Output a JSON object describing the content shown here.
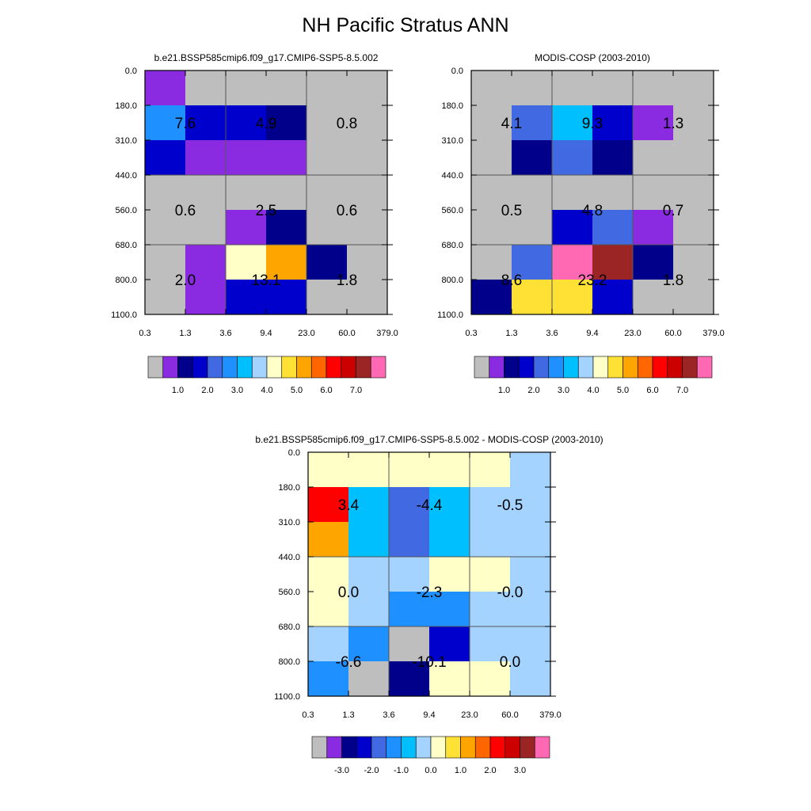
{
  "title": "NH Pacific Stratus ANN",
  "palette": {
    "missing": "#bebebe",
    "abs": [
      "#bebebe",
      "#8a2be2",
      "#00008b",
      "#0000cd",
      "#4169e1",
      "#1e90ff",
      "#00bfff",
      "#a4d3ff",
      "#ffffc8",
      "#ffe135",
      "#ffa500",
      "#ff6600",
      "#ff0000",
      "#cd0000",
      "#9b2424",
      "#ff69b4"
    ],
    "diff": [
      "#bebebe",
      "#8a2be2",
      "#00008b",
      "#0000cd",
      "#4169e1",
      "#1e90ff",
      "#00bfff",
      "#a4d3ff",
      "#ffffc8",
      "#ffe135",
      "#ffa500",
      "#ff6600",
      "#ff0000",
      "#cd0000",
      "#9b2424",
      "#ff69b4"
    ]
  },
  "chart_data": [
    {
      "type": "heatmap",
      "title": "b.e21.BSSP585cmip6.f09_g17.CMIP6-SSP5-8.5.002",
      "x_ticks": [
        "0.3",
        "1.3",
        "3.6",
        "9.4",
        "23.0",
        "60.0",
        "379.0"
      ],
      "y_ticks": [
        "0.0",
        "180.0",
        "310.0",
        "440.0",
        "560.0",
        "680.0",
        "800.0",
        "1100.0"
      ],
      "cell_colors": [
        [
          "#8a2be2",
          "#bebebe",
          "#bebebe",
          "#bebebe",
          "#bebebe",
          "#bebebe"
        ],
        [
          "#1e90ff",
          "#0000cd",
          "#0000cd",
          "#00008b",
          "#bebebe",
          "#bebebe"
        ],
        [
          "#0000cd",
          "#8a2be2",
          "#8a2be2",
          "#8a2be2",
          "#bebebe",
          "#bebebe"
        ],
        [
          "#bebebe",
          "#bebebe",
          "#bebebe",
          "#bebebe",
          "#bebebe",
          "#bebebe"
        ],
        [
          "#bebebe",
          "#bebebe",
          "#8a2be2",
          "#00008b",
          "#bebebe",
          "#bebebe"
        ],
        [
          "#bebebe",
          "#8a2be2",
          "#ffffc8",
          "#ffa500",
          "#00008b",
          "#bebebe"
        ],
        [
          "#bebebe",
          "#8a2be2",
          "#0000cd",
          "#0000cd",
          "#bebebe",
          "#bebebe"
        ]
      ],
      "block_values": [
        [
          "7.6",
          "4.9",
          "0.8"
        ],
        [
          "0.6",
          "2.5",
          "0.6"
        ],
        [
          "2.0",
          "13.1",
          "1.8"
        ]
      ],
      "colorbar_labels": [
        "1.0",
        "2.0",
        "3.0",
        "4.0",
        "5.0",
        "6.0",
        "7.0"
      ]
    },
    {
      "type": "heatmap",
      "title": "MODIS-COSP (2003-2010)",
      "x_ticks": [
        "0.3",
        "1.3",
        "3.6",
        "9.4",
        "23.0",
        "60.0",
        "379.0"
      ],
      "y_ticks": [
        "0.0",
        "180.0",
        "310.0",
        "440.0",
        "560.0",
        "680.0",
        "800.0",
        "1100.0"
      ],
      "cell_colors": [
        [
          "#bebebe",
          "#bebebe",
          "#bebebe",
          "#bebebe",
          "#bebebe",
          "#bebebe"
        ],
        [
          "#bebebe",
          "#4169e1",
          "#00bfff",
          "#0000cd",
          "#8a2be2",
          "#bebebe"
        ],
        [
          "#bebebe",
          "#00008b",
          "#4169e1",
          "#00008b",
          "#bebebe",
          "#bebebe"
        ],
        [
          "#bebebe",
          "#bebebe",
          "#bebebe",
          "#bebebe",
          "#bebebe",
          "#bebebe"
        ],
        [
          "#bebebe",
          "#bebebe",
          "#0000cd",
          "#4169e1",
          "#8a2be2",
          "#bebebe"
        ],
        [
          "#bebebe",
          "#4169e1",
          "#ff69b4",
          "#9b2424",
          "#00008b",
          "#bebebe"
        ],
        [
          "#00008b",
          "#ffe135",
          "#ffe135",
          "#0000cd",
          "#bebebe",
          "#bebebe"
        ]
      ],
      "block_values": [
        [
          "4.1",
          "9.3",
          "1.3"
        ],
        [
          "0.5",
          "4.8",
          "0.7"
        ],
        [
          "8.6",
          "23.2",
          "1.8"
        ]
      ],
      "colorbar_labels": [
        "1.0",
        "2.0",
        "3.0",
        "4.0",
        "5.0",
        "6.0",
        "7.0"
      ]
    },
    {
      "type": "heatmap",
      "title": "b.e21.BSSP585cmip6.f09_g17.CMIP6-SSP5-8.5.002 - MODIS-COSP (2003-2010)",
      "x_ticks": [
        "0.3",
        "1.3",
        "3.6",
        "9.4",
        "23.0",
        "60.0",
        "379.0"
      ],
      "y_ticks": [
        "0.0",
        "180.0",
        "310.0",
        "440.0",
        "560.0",
        "680.0",
        "800.0",
        "1100.0"
      ],
      "cell_colors": [
        [
          "#ffffc8",
          "#ffffc8",
          "#ffffc8",
          "#ffffc8",
          "#ffffc8",
          "#a4d3ff"
        ],
        [
          "#ff0000",
          "#00bfff",
          "#4169e1",
          "#00bfff",
          "#a4d3ff",
          "#a4d3ff"
        ],
        [
          "#ffa500",
          "#00bfff",
          "#4169e1",
          "#00bfff",
          "#a4d3ff",
          "#a4d3ff"
        ],
        [
          "#ffffc8",
          "#a4d3ff",
          "#a4d3ff",
          "#ffffc8",
          "#ffffc8",
          "#a4d3ff"
        ],
        [
          "#ffffc8",
          "#a4d3ff",
          "#1e90ff",
          "#1e90ff",
          "#a4d3ff",
          "#a4d3ff"
        ],
        [
          "#a4d3ff",
          "#1e90ff",
          "#bebebe",
          "#0000cd",
          "#a4d3ff",
          "#a4d3ff"
        ],
        [
          "#1e90ff",
          "#bebebe",
          "#00008b",
          "#ffffc8",
          "#ffffc8",
          "#a4d3ff"
        ]
      ],
      "block_values": [
        [
          "3.4",
          "-4.4",
          "-0.5"
        ],
        [
          "0.0",
          "-2.3",
          "-0.0"
        ],
        [
          "-6.6",
          "-10.1",
          "0.0"
        ]
      ],
      "colorbar_labels": [
        "-3.0",
        "-2.0",
        "-1.0",
        "0.0",
        "1.0",
        "2.0",
        "3.0"
      ]
    }
  ]
}
